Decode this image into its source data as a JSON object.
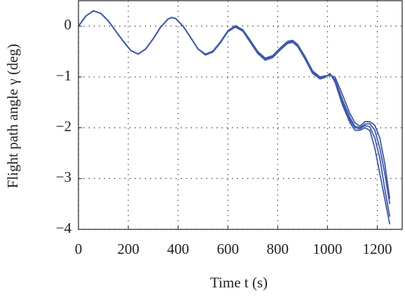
{
  "chart_data": {
    "type": "line",
    "xlabel": "Time t (s)",
    "ylabel": "Flight path angle γ (deg)",
    "xlim": [
      0,
      1300
    ],
    "ylim": [
      -4,
      0.5
    ],
    "xticks": [
      0,
      200,
      400,
      600,
      800,
      1000,
      1200
    ],
    "yticks": [
      0,
      {
        "value": -1,
        "label": "−1"
      },
      {
        "value": -2,
        "label": "−2"
      },
      {
        "value": -3,
        "label": "−3"
      },
      {
        "value": -4,
        "label": "−4"
      }
    ],
    "grid": true,
    "x": [
      0,
      30,
      60,
      90,
      120,
      150,
      180,
      210,
      240,
      270,
      300,
      330,
      360,
      375,
      390,
      420,
      450,
      480,
      510,
      540,
      570,
      600,
      630,
      660,
      690,
      720,
      750,
      780,
      810,
      840,
      860,
      880,
      910,
      940,
      970,
      990,
      1010,
      1030,
      1060,
      1090,
      1110,
      1130,
      1150,
      1170,
      1190,
      1210,
      1230,
      1250
    ],
    "series": [
      {
        "color": "#3f5aa8",
        "values": [
          0,
          0.2,
          0.3,
          0.25,
          0.1,
          -0.1,
          -0.3,
          -0.48,
          -0.55,
          -0.45,
          -0.25,
          -0.02,
          0.14,
          0.17,
          0.15,
          0,
          -0.22,
          -0.45,
          -0.56,
          -0.5,
          -0.32,
          -0.1,
          0,
          -0.08,
          -0.3,
          -0.52,
          -0.65,
          -0.6,
          -0.45,
          -0.32,
          -0.3,
          -0.38,
          -0.62,
          -0.9,
          -1.02,
          -1,
          -0.95,
          -1.05,
          -1.45,
          -1.8,
          -1.97,
          -2,
          -1.93,
          -1.92,
          -2.05,
          -2.4,
          -2.9,
          -3.5
        ]
      },
      {
        "color": "#3f5aa8",
        "values": [
          0,
          0.2,
          0.3,
          0.25,
          0.1,
          -0.1,
          -0.3,
          -0.48,
          -0.55,
          -0.45,
          -0.25,
          -0.02,
          0.14,
          0.17,
          0.15,
          0,
          -0.22,
          -0.45,
          -0.57,
          -0.51,
          -0.33,
          -0.11,
          -0.02,
          -0.1,
          -0.32,
          -0.54,
          -0.67,
          -0.62,
          -0.47,
          -0.34,
          -0.32,
          -0.4,
          -0.65,
          -0.93,
          -1.04,
          -1.01,
          -0.93,
          -1.1,
          -1.55,
          -1.9,
          -2.05,
          -2.05,
          -2,
          -2.05,
          -2.4,
          -2.9,
          -3.4,
          -3.9
        ]
      },
      {
        "color": "#3f5aa8",
        "values": [
          0,
          0.2,
          0.3,
          0.25,
          0.1,
          -0.1,
          -0.3,
          -0.48,
          -0.55,
          -0.45,
          -0.25,
          -0.02,
          0.14,
          0.17,
          0.15,
          0,
          -0.22,
          -0.45,
          -0.55,
          -0.49,
          -0.31,
          -0.09,
          0.01,
          -0.07,
          -0.28,
          -0.5,
          -0.63,
          -0.58,
          -0.43,
          -0.3,
          -0.28,
          -0.36,
          -0.6,
          -0.88,
          -1,
          -0.98,
          -0.97,
          -1,
          -1.35,
          -1.72,
          -1.9,
          -1.97,
          -1.88,
          -1.88,
          -1.95,
          -2.2,
          -2.7,
          -3.4
        ]
      },
      {
        "color": "#3f5aa8",
        "values": [
          0,
          0.2,
          0.3,
          0.25,
          0.1,
          -0.1,
          -0.3,
          -0.48,
          -0.55,
          -0.45,
          -0.25,
          -0.02,
          0.14,
          0.17,
          0.15,
          0,
          -0.22,
          -0.45,
          -0.56,
          -0.5,
          -0.32,
          -0.1,
          0,
          -0.09,
          -0.31,
          -0.53,
          -0.66,
          -0.61,
          -0.46,
          -0.33,
          -0.31,
          -0.39,
          -0.63,
          -0.91,
          -1.03,
          -1,
          -0.94,
          -1.07,
          -1.5,
          -1.85,
          -2,
          -2.02,
          -1.96,
          -1.98,
          -2.2,
          -2.6,
          -3.2,
          -3.75
        ]
      }
    ]
  }
}
